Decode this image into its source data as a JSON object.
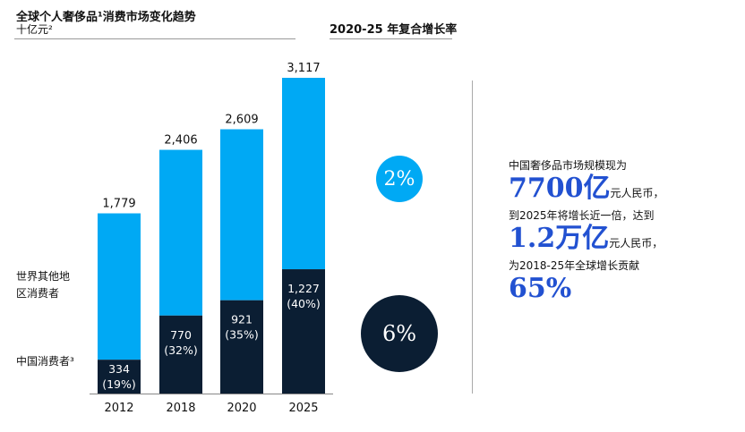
{
  "header": {
    "title": "全球个人奢侈品¹消费市场变化趋势",
    "unit": "十亿元²",
    "cagr_title": "2020-25 年复合增长率"
  },
  "colors": {
    "rest_of_world": "#00A9F4",
    "china": "#0B1E33",
    "highlight": "#2251D1"
  },
  "chart_data": {
    "type": "bar",
    "stacked": true,
    "categories": [
      "2012",
      "2018",
      "2020",
      "2025"
    ],
    "totals": [
      "1,779",
      "2,406",
      "2,609",
      "3,117"
    ],
    "series": [
      {
        "name": "中国消费者³",
        "values": [
          334,
          770,
          921,
          1227
        ],
        "labels": [
          "334\n(19%)",
          "770\n(32%)",
          "921\n(35%)",
          "1,227\n(40%)"
        ]
      },
      {
        "name": "世界其他地区消费者",
        "values": [
          1445,
          1636,
          1688,
          1890
        ]
      }
    ],
    "total_values": [
      1779,
      2406,
      2609,
      3117
    ]
  },
  "legend": {
    "rest": "世界其他地\n区消费者",
    "china": "中国消费者³"
  },
  "cagr": {
    "rest": "2%",
    "china": "6%"
  },
  "callout": {
    "line1": "中国奢侈品市场规模现为",
    "big1": "7700亿",
    "unit1": "元人民币，",
    "line2": "到2025年将增长近一倍，达到",
    "big2": "1.2万亿",
    "unit2": "元人民币，",
    "line3": "为2018-25年全球增长贡献",
    "big3": "65%"
  }
}
